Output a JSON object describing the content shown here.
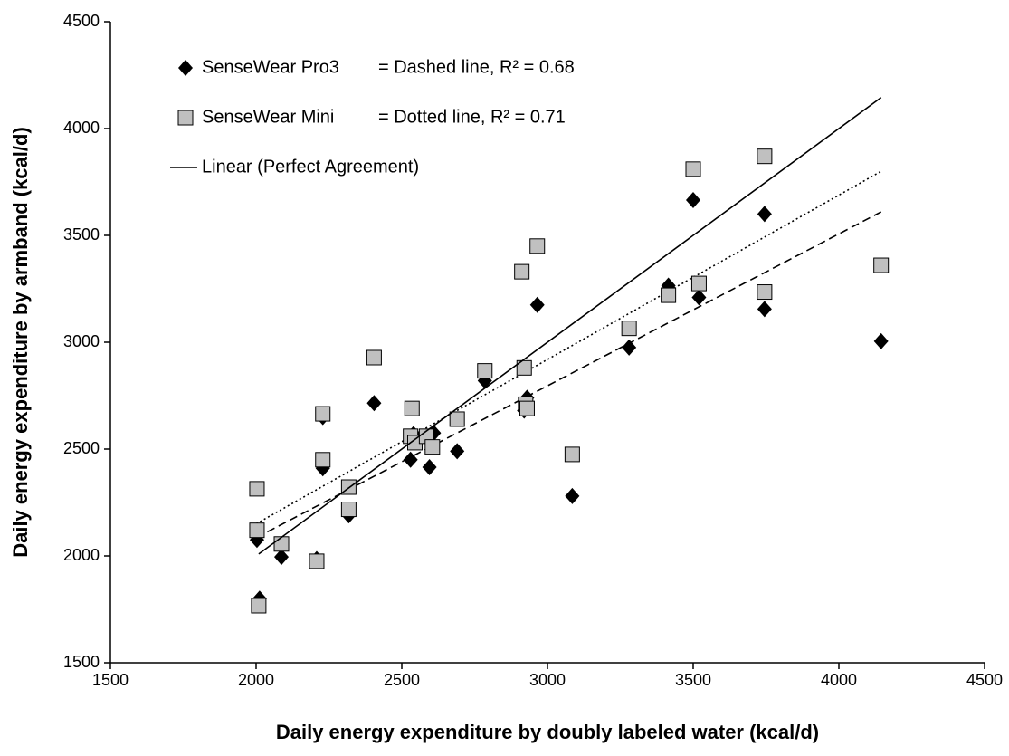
{
  "chart_data": {
    "type": "scatter",
    "xlabel": "Daily energy expenditure by doubly labeled water (kcal/d)",
    "ylabel": "Daily energy expenditure by armband (kcal/d)",
    "xlim": [
      1500,
      4500
    ],
    "xticks": [
      1500,
      2000,
      2500,
      3000,
      3500,
      4000,
      4500
    ],
    "ylim": [
      1500,
      4500
    ],
    "yticks": [
      1500,
      2000,
      2500,
      3000,
      3500,
      4000,
      4500
    ],
    "grid": false,
    "legend": "upper left",
    "series": [
      {
        "name": "SenseWear Pro3",
        "marker": "diamond",
        "color": "#000000",
        "x": [
          2003,
          2012,
          2087,
          2208,
          2229,
          2229,
          2318,
          2405,
          2530,
          2540,
          2595,
          2610,
          2690,
          2785,
          2920,
          2930,
          2965,
          3085,
          3280,
          3415,
          3500,
          3520,
          3745,
          3745,
          4145
        ],
        "values": [
          2075,
          1800,
          1995,
          1985,
          2650,
          2410,
          2190,
          2715,
          2450,
          2570,
          2415,
          2575,
          2490,
          2820,
          2680,
          2740,
          3175,
          2280,
          2975,
          3265,
          3665,
          3210,
          3600,
          3155,
          3005
        ]
      },
      {
        "name": "SenseWear Mini",
        "marker": "square",
        "color": "#c0c0c0",
        "x": [
          2003,
          2003,
          2009,
          2087,
          2208,
          2229,
          2229,
          2318,
          2318,
          2405,
          2535,
          2530,
          2545,
          2585,
          2605,
          2690,
          2785,
          2912,
          2920,
          2925,
          2930,
          2965,
          3085,
          3280,
          3415,
          3500,
          3520,
          3745,
          3745,
          4145
        ],
        "values": [
          2314,
          2120,
          1767,
          2056,
          1975,
          2665,
          2450,
          2322,
          2218,
          2928,
          2690,
          2560,
          2530,
          2560,
          2510,
          2640,
          2866,
          3330,
          2880,
          2710,
          2690,
          3450,
          2475,
          3065,
          3220,
          3810,
          3275,
          3870,
          3235,
          3360
        ]
      },
      {
        "name": "Linear (Perfect Agreement)",
        "marker": "line",
        "style": "solid",
        "color": "#000000",
        "x": [
          2009,
          4145
        ],
        "values": [
          2009,
          4145
        ]
      }
    ],
    "fit_lines": [
      {
        "style": "dashed",
        "color": "#000000",
        "x": [
          2000,
          4145
        ],
        "values": [
          2085,
          3610
        ]
      },
      {
        "style": "dotted",
        "color": "#000000",
        "x": [
          2000,
          4145
        ],
        "values": [
          2150,
          3800
        ]
      }
    ],
    "annotations": [
      "= Dashed line, R² = 0.68",
      "= Dotted line, R² = 0.71"
    ]
  }
}
